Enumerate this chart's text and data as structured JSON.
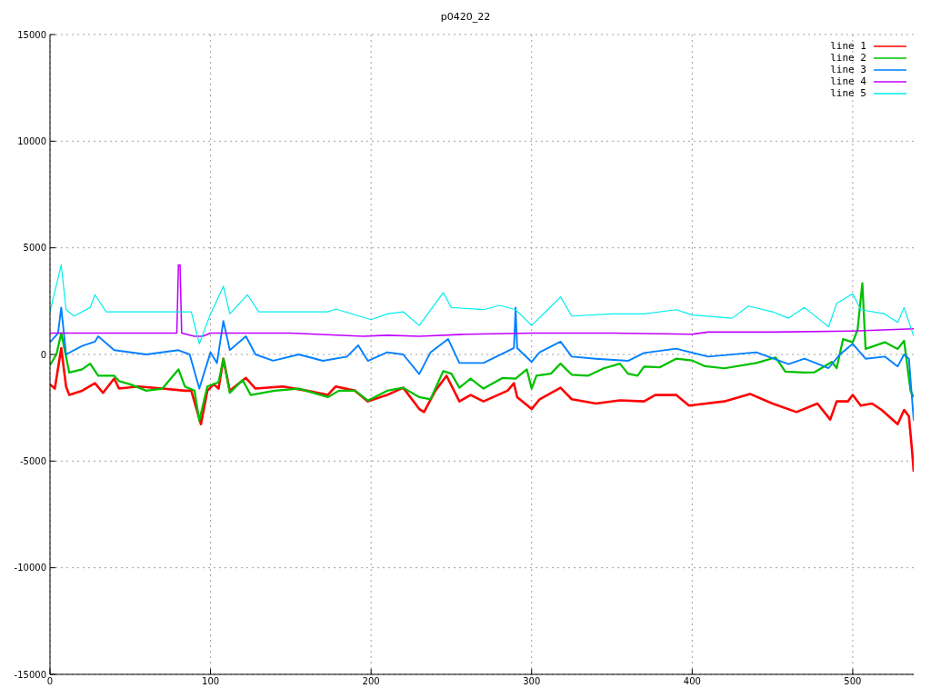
{
  "chart_data": {
    "type": "line",
    "title": "p0420_22",
    "xlim": [
      0,
      538
    ],
    "xticks": [
      0,
      100,
      200,
      300,
      400,
      500
    ],
    "ylim": [
      -15000,
      15000
    ],
    "yticks": [
      -15000,
      -10000,
      -5000,
      0,
      5000,
      10000,
      15000
    ],
    "grid": true,
    "legend": "top right",
    "marker": "none",
    "line_style": "solid",
    "series": [
      {
        "name": "line 1",
        "color": "#ff0000",
        "x": [
          0,
          3,
          7,
          10,
          12,
          20,
          28,
          33,
          40,
          43,
          55,
          70,
          84,
          88,
          94,
          98,
          102,
          105,
          108,
          112,
          122,
          128,
          145,
          160,
          173,
          178,
          190,
          198,
          210,
          220,
          230,
          233,
          240,
          247,
          255,
          262,
          270,
          285,
          289,
          291,
          300,
          305,
          318,
          325,
          340,
          355,
          370,
          377,
          390,
          398,
          420,
          436,
          450,
          465,
          478,
          486,
          490,
          497,
          500,
          505,
          512,
          518,
          528,
          532,
          535,
          537,
          538
        ],
        "values": [
          -1400,
          -1600,
          300,
          -1500,
          -1900,
          -1700,
          -1350,
          -1800,
          -1130,
          -1600,
          -1500,
          -1600,
          -1700,
          -1700,
          -3270,
          -1700,
          -1400,
          -1600,
          -200,
          -1700,
          -1100,
          -1600,
          -1500,
          -1700,
          -1900,
          -1500,
          -1700,
          -2200,
          -1900,
          -1560,
          -2560,
          -2700,
          -1700,
          -1000,
          -2200,
          -1900,
          -2200,
          -1700,
          -1350,
          -2000,
          -2560,
          -2100,
          -1560,
          -2100,
          -2300,
          -2150,
          -2200,
          -1900,
          -1900,
          -2400,
          -2200,
          -1850,
          -2300,
          -2700,
          -2300,
          -3050,
          -2200,
          -2200,
          -1900,
          -2400,
          -2300,
          -2600,
          -3270,
          -2600,
          -2900,
          -4550,
          -5500
        ]
      },
      {
        "name": "line 2",
        "color": "#00c000",
        "x": [
          0,
          4,
          7,
          12,
          20,
          25,
          30,
          40,
          43,
          50,
          60,
          70,
          80,
          84,
          90,
          93,
          98,
          105,
          108,
          112,
          120,
          125,
          140,
          155,
          173,
          180,
          190,
          198,
          210,
          220,
          230,
          237,
          245,
          250,
          255,
          262,
          270,
          282,
          290,
          297,
          300,
          303,
          312,
          318,
          325,
          335,
          345,
          355,
          360,
          366,
          370,
          380,
          390,
          400,
          408,
          420,
          440,
          452,
          458,
          470,
          476,
          487,
          490,
          494,
          500,
          503,
          506,
          508,
          520,
          528,
          532,
          536,
          538
        ],
        "values": [
          -500,
          0,
          1000,
          -850,
          -700,
          -430,
          -1000,
          -1000,
          -1250,
          -1400,
          -1700,
          -1600,
          -700,
          -1500,
          -1700,
          -3100,
          -1500,
          -1300,
          -200,
          -1800,
          -1200,
          -1900,
          -1700,
          -1600,
          -2000,
          -1700,
          -1700,
          -2160,
          -1700,
          -1560,
          -2000,
          -2100,
          -780,
          -900,
          -1560,
          -1130,
          -1600,
          -1100,
          -1130,
          -700,
          -1600,
          -1000,
          -900,
          -430,
          -950,
          -1000,
          -650,
          -430,
          -900,
          -1000,
          -570,
          -600,
          -200,
          -280,
          -550,
          -650,
          -400,
          -140,
          -800,
          -850,
          -840,
          -350,
          -640,
          720,
          570,
          1150,
          3340,
          260,
          570,
          260,
          640,
          -1700,
          -2000
        ]
      },
      {
        "name": "line 3",
        "color": "#0080ff",
        "x": [
          0,
          5,
          7,
          10,
          20,
          28,
          30,
          40,
          60,
          80,
          87,
          93,
          100,
          104,
          108,
          112,
          122,
          128,
          139,
          155,
          170,
          185,
          192,
          198,
          210,
          220,
          230,
          237,
          248,
          255,
          270,
          289,
          290,
          291,
          300,
          305,
          318,
          325,
          340,
          360,
          370,
          390,
          410,
          440,
          460,
          470,
          485,
          492,
          500,
          508,
          520,
          528,
          532,
          535,
          538
        ],
        "values": [
          570,
          1000,
          2200,
          0,
          400,
          600,
          850,
          200,
          0,
          200,
          0,
          -1600,
          100,
          -400,
          1570,
          200,
          850,
          0,
          -290,
          0,
          -300,
          -100,
          430,
          -300,
          100,
          0,
          -920,
          100,
          720,
          -400,
          -400,
          300,
          2200,
          300,
          -350,
          100,
          600,
          -100,
          -200,
          -300,
          70,
          270,
          -100,
          100,
          -450,
          -200,
          -640,
          0,
          500,
          -200,
          -100,
          -560,
          0,
          -200,
          -3100
        ]
      },
      {
        "name": "line 4",
        "color": "#c000ff",
        "x": [
          0,
          79,
          80,
          81,
          82,
          90,
          95,
          100,
          150,
          195,
          210,
          230,
          260,
          300,
          350,
          400,
          410,
          450,
          500,
          538
        ],
        "values": [
          1000,
          1000,
          4200,
          4200,
          1000,
          850,
          850,
          1000,
          1000,
          850,
          900,
          850,
          950,
          1000,
          1000,
          950,
          1050,
          1050,
          1100,
          1200
        ]
      },
      {
        "name": "line 5",
        "color": "#00eeee",
        "x": [
          0,
          7,
          10,
          15,
          25,
          28,
          35,
          50,
          70,
          80,
          88,
          93,
          100,
          108,
          112,
          123,
          130,
          150,
          173,
          178,
          200,
          210,
          220,
          230,
          245,
          250,
          270,
          280,
          290,
          300,
          310,
          318,
          325,
          350,
          360,
          370,
          390,
          400,
          425,
          435,
          450,
          460,
          470,
          485,
          490,
          500,
          505,
          520,
          528,
          532,
          538
        ],
        "values": [
          2000,
          4200,
          2100,
          1800,
          2200,
          2800,
          2000,
          2000,
          2000,
          2000,
          2000,
          500,
          1900,
          3200,
          1900,
          2800,
          2000,
          2000,
          2000,
          2130,
          1630,
          1900,
          2000,
          1360,
          2900,
          2200,
          2100,
          2300,
          2100,
          1360,
          2100,
          2700,
          1800,
          1900,
          1900,
          1900,
          2100,
          1850,
          1700,
          2270,
          2000,
          1700,
          2200,
          1300,
          2400,
          2840,
          2100,
          1900,
          1500,
          2200,
          850
        ]
      }
    ]
  }
}
